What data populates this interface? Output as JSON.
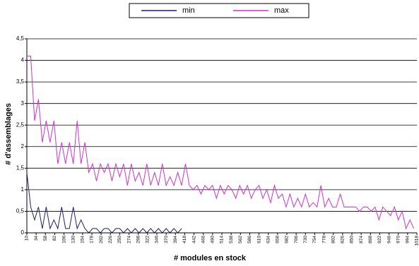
{
  "chart_data": {
    "type": "line",
    "x_label": "# modules en stock",
    "y_label": "# d'assemblages",
    "legend": "top",
    "grid": true,
    "xlim": [
      10,
      1018
    ],
    "ylim": [
      0,
      4.5
    ],
    "yticks": [
      0,
      {
        "value": 0.5,
        "label": "0,5"
      },
      1,
      {
        "value": 1.5,
        "label": "1,5"
      },
      2,
      {
        "value": 2.5,
        "label": "2,5"
      },
      3,
      {
        "value": 3.5,
        "label": "3,5"
      },
      4,
      {
        "value": 4.5,
        "label": "4,5"
      }
    ],
    "xticks": [
      10,
      34,
      58,
      82,
      106,
      130,
      154,
      178,
      202,
      226,
      250,
      274,
      298,
      322,
      346,
      370,
      394,
      418,
      442,
      466,
      490,
      514,
      538,
      562,
      586,
      610,
      634,
      658,
      682,
      706,
      730,
      754,
      778,
      802,
      826,
      850,
      874,
      898,
      922,
      946,
      970,
      994,
      1018
    ],
    "x": [
      10,
      20,
      30,
      40,
      50,
      60,
      70,
      80,
      90,
      100,
      110,
      120,
      130,
      140,
      150,
      160,
      170,
      180,
      190,
      200,
      210,
      220,
      230,
      240,
      250,
      260,
      270,
      280,
      290,
      300,
      310,
      320,
      330,
      340,
      350,
      360,
      370,
      380,
      390,
      400,
      410,
      420,
      430,
      440,
      450,
      460,
      470,
      480,
      490,
      500,
      510,
      520,
      530,
      540,
      550,
      560,
      570,
      580,
      590,
      600,
      610,
      620,
      630,
      640,
      650,
      660,
      670,
      680,
      690,
      700,
      710,
      720,
      730,
      740,
      750,
      760,
      770,
      780,
      790,
      800,
      810,
      820,
      830,
      840,
      850,
      860,
      870,
      880,
      890,
      900,
      910,
      920,
      930,
      940,
      950,
      960,
      970,
      980,
      990,
      1000,
      1010
    ],
    "series": [
      {
        "name": "min",
        "color": "#1f1f6e",
        "values": [
          1.4,
          0.6,
          0.3,
          0.6,
          0.1,
          0.6,
          0.1,
          0.3,
          0.1,
          0.6,
          0.1,
          0.1,
          0.6,
          0.1,
          0.3,
          0.1,
          0,
          0.1,
          0.1,
          0,
          0.1,
          0.1,
          0,
          0.1,
          0.1,
          0,
          0.1,
          0,
          0.1,
          0,
          0.1,
          0,
          0.1,
          0,
          0.1,
          0,
          0.1,
          0,
          0.1,
          0,
          0.1,
          null,
          null,
          null,
          null,
          null,
          null,
          null,
          null,
          null,
          null,
          null,
          null,
          null,
          null,
          null,
          null,
          null,
          null,
          null,
          null,
          null,
          null,
          null,
          null,
          null,
          null,
          null,
          null,
          null,
          null,
          null,
          null,
          null,
          null,
          null,
          null,
          null,
          null,
          null,
          null,
          null,
          null,
          null,
          null,
          null,
          null,
          null,
          null,
          null,
          null,
          null,
          null,
          null,
          null,
          null,
          null,
          null,
          null,
          null,
          null
        ]
      },
      {
        "name": "max",
        "color": "#cc33cc",
        "values": [
          4.1,
          4.1,
          2.6,
          3.1,
          2.1,
          2.6,
          2.1,
          2.6,
          1.6,
          2.1,
          1.6,
          2.1,
          1.6,
          2.6,
          1.6,
          2.1,
          1.4,
          1.6,
          1.2,
          1.6,
          1.4,
          1.6,
          1.2,
          1.6,
          1.3,
          1.6,
          1.1,
          1.6,
          1.2,
          1.4,
          1.1,
          1.6,
          1.1,
          1.4,
          1.1,
          1.6,
          1.1,
          1.3,
          1.1,
          1.4,
          1.1,
          1.6,
          1.1,
          1.0,
          1.1,
          0.9,
          1.1,
          1.0,
          1.1,
          0.8,
          1.1,
          0.9,
          1.1,
          1.0,
          0.8,
          1.1,
          0.9,
          1.1,
          0.8,
          1.0,
          1.1,
          0.8,
          1.0,
          0.7,
          1.1,
          0.8,
          0.9,
          0.6,
          0.9,
          0.6,
          0.8,
          0.6,
          0.9,
          0.6,
          0.7,
          0.6,
          1.1,
          0.6,
          0.8,
          0.6,
          0.6,
          0.9,
          0.6,
          0.6,
          0.6,
          0.6,
          0.5,
          0.6,
          0.6,
          0.5,
          0.6,
          0.3,
          0.6,
          0.5,
          0.4,
          0.6,
          0.3,
          0.5,
          0.1,
          0.3,
          0.1
        ]
      }
    ]
  }
}
